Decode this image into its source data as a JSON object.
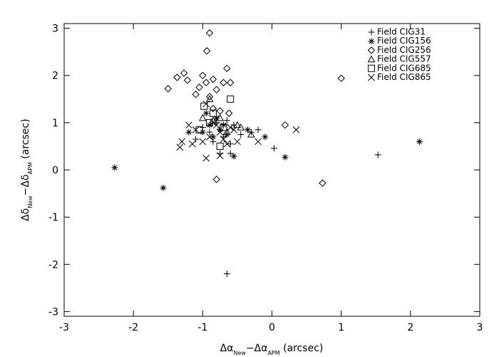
{
  "chart_data": {
    "type": "scatter",
    "x_label": [
      "Δα",
      "New",
      "−Δα",
      "APM",
      " (arcsec)"
    ],
    "y_label": [
      "Δδ",
      "New",
      "−Δδ",
      "APM",
      " (arcsec)"
    ],
    "xlim": [
      -3,
      3
    ],
    "ylim": [
      -3.1,
      3.1
    ],
    "xticks": [
      -3,
      -2,
      -1,
      0,
      1,
      2,
      3
    ],
    "yticks": [
      -3,
      -2,
      -1,
      0,
      1,
      2,
      3
    ],
    "legend": "upper right",
    "series": [
      {
        "name": "Field CIG31",
        "marker": "plus",
        "color": "#000000",
        "x": [
          -0.65,
          1.53,
          0.03,
          -0.75,
          -0.6,
          -0.45,
          -0.3,
          -0.2,
          -0.9,
          -0.8,
          -0.7,
          -1.0,
          -0.65,
          -0.55,
          -1.1,
          -0.85,
          -0.6
        ],
        "y": [
          -2.2,
          0.32,
          0.46,
          0.35,
          0.55,
          0.75,
          0.8,
          0.85,
          0.8,
          1.0,
          0.7,
          0.9,
          1.05,
          0.95,
          0.65,
          0.6,
          0.35
        ]
      },
      {
        "name": "Field CIG156",
        "marker": "asterisk",
        "color": "#000000",
        "x": [
          -2.27,
          -1.57,
          2.13,
          0.19,
          -0.55,
          -0.1,
          -0.35,
          -0.75,
          -0.9,
          -1.0,
          -0.8,
          -0.65,
          -1.2,
          -0.85,
          -0.95,
          -0.7
        ],
        "y": [
          0.05,
          -0.38,
          0.6,
          0.27,
          0.29,
          0.7,
          0.85,
          0.85,
          0.95,
          0.8,
          1.1,
          0.75,
          0.8,
          0.7,
          1.2,
          0.95
        ]
      },
      {
        "name": "Field CIG256",
        "marker": "diamond",
        "color": "#000000",
        "x": [
          -0.9,
          -0.94,
          1.0,
          0.73,
          -0.8,
          0.19,
          -1.5,
          -1.37,
          -1.27,
          -1.22,
          -1.0,
          -0.85,
          -0.7,
          -0.65,
          -1.05,
          -0.9,
          -0.8,
          -0.95,
          -0.75,
          -0.6,
          -1.1,
          -0.85,
          -0.62
        ],
        "y": [
          2.9,
          2.52,
          1.94,
          -0.28,
          -0.2,
          0.95,
          1.72,
          1.96,
          2.05,
          1.9,
          2.0,
          1.92,
          1.85,
          2.15,
          1.75,
          1.55,
          1.7,
          1.85,
          1.25,
          1.85,
          1.6,
          1.3,
          1.2
        ]
      },
      {
        "name": "Field CIG557",
        "marker": "triangle",
        "color": "#000000",
        "x": [
          -0.9,
          -0.75,
          -0.5,
          -0.45,
          -0.85,
          -0.65,
          -0.3,
          -1.0
        ],
        "y": [
          1.5,
          1.1,
          0.95,
          0.9,
          1.05,
          0.8,
          0.75,
          1.1
        ]
      },
      {
        "name": "Field CIG685",
        "marker": "square",
        "color": "#000000",
        "x": [
          -0.6,
          -0.98,
          -0.85,
          -1.05,
          -0.75,
          -0.9,
          -0.7
        ],
        "y": [
          1.5,
          1.35,
          1.2,
          0.85,
          0.5,
          1.0,
          0.9
        ]
      },
      {
        "name": "Field CIG865",
        "marker": "cross",
        "color": "#000000",
        "x": [
          0.35,
          -0.95,
          -0.75,
          -1.33,
          -1.3,
          -0.2,
          -0.5,
          -0.7,
          -0.9,
          -1.1,
          -1.2,
          -0.95,
          -0.85,
          -0.75,
          -0.6,
          -1.0,
          -0.65,
          -0.55,
          -1.15,
          -0.8
        ],
        "y": [
          0.85,
          0.25,
          0.3,
          0.48,
          0.6,
          0.6,
          0.6,
          0.65,
          0.7,
          0.85,
          0.95,
          1.4,
          1.0,
          0.8,
          0.9,
          0.6,
          0.55,
          0.85,
          0.55,
          0.95
        ]
      }
    ]
  }
}
